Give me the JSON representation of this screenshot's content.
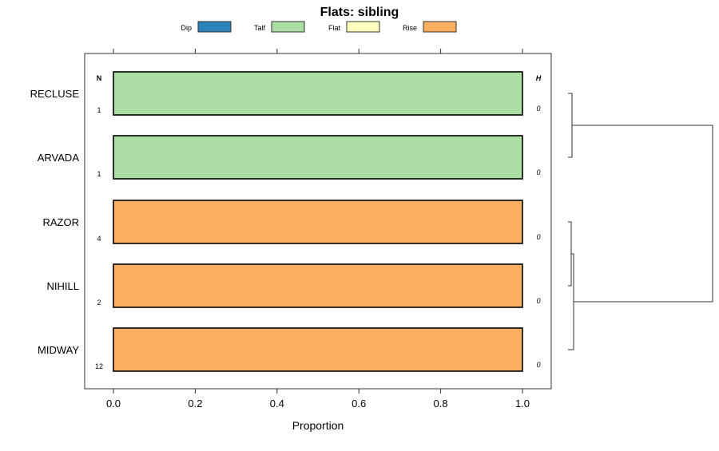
{
  "chart_data": {
    "type": "bar",
    "orientation": "horizontal",
    "stacked": true,
    "title": "Flats: sibling",
    "xlabel": "Proportion",
    "ylabel": "",
    "xlim": [
      0,
      1
    ],
    "x_ticks": [
      "0.0",
      "0.2",
      "0.4",
      "0.6",
      "0.8",
      "1.0"
    ],
    "x_tick_values": [
      0,
      0.2,
      0.4,
      0.6,
      0.8,
      1.0
    ],
    "legend": {
      "placement": "top",
      "entries": [
        {
          "name": "Dip",
          "color": "#2b83ba"
        },
        {
          "name": "Talf",
          "color": "#abdda4"
        },
        {
          "name": "Flat",
          "color": "#ffffbf"
        },
        {
          "name": "Rise",
          "color": "#fdae61"
        }
      ]
    },
    "n_header": "N",
    "h_header": "H",
    "categories": [
      "RECLUSE",
      "ARVADA",
      "RAZOR",
      "NIHILL",
      "MIDWAY"
    ],
    "series": [
      {
        "name": "Dip",
        "values": [
          0,
          0,
          0,
          0,
          0
        ]
      },
      {
        "name": "Talf",
        "values": [
          1,
          1,
          0,
          0,
          0
        ]
      },
      {
        "name": "Flat",
        "values": [
          0,
          0,
          0,
          0,
          0
        ]
      },
      {
        "name": "Rise",
        "values": [
          0,
          0,
          1,
          1,
          1
        ]
      }
    ],
    "n_values": [
      "1",
      "1",
      "4",
      "2",
      "12"
    ],
    "h_values": [
      "0",
      "0",
      "0",
      "0",
      "0"
    ],
    "dendrogram": "((RECLUSE,ARVADA),((RAZOR,NIHILL),MIDWAY))"
  }
}
